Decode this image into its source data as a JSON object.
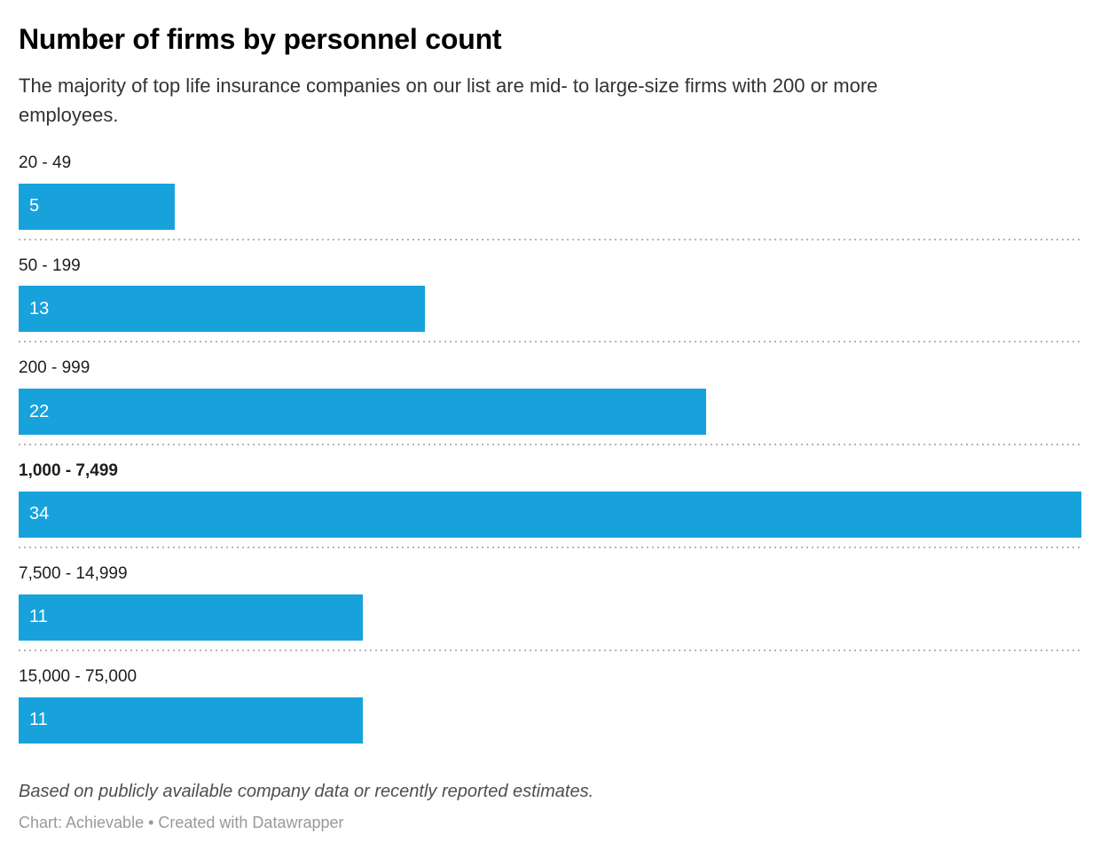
{
  "header": {
    "title": "Number of firms by personnel count",
    "subtitle": "The majority of top life insurance companies on our list are mid- to large-size firms with 200 or more employees."
  },
  "chart_data": {
    "type": "bar",
    "orientation": "horizontal",
    "categories": [
      "20 - 49",
      "50 - 199",
      "200 - 999",
      "1,000 - 7,499",
      "7,500 - 14,999",
      "15,000 - 75,000"
    ],
    "values": [
      5,
      13,
      22,
      34,
      11,
      11
    ],
    "max_value": 34,
    "emphasized_index": 3,
    "bar_color": "#18a2dc",
    "value_label_color": "#ffffff",
    "label_color": "#1d1d1d",
    "separator_style": "dotted",
    "separator_color": "#b5b5b5",
    "title": "Number of firms by personnel count",
    "xlabel": "",
    "ylabel": "",
    "xlim": [
      0,
      34
    ],
    "grid": "off",
    "legend": "none"
  },
  "footer": {
    "note": "Based on publicly available company data or recently reported estimates.",
    "byline": "Chart: Achievable • Created with Datawrapper"
  }
}
